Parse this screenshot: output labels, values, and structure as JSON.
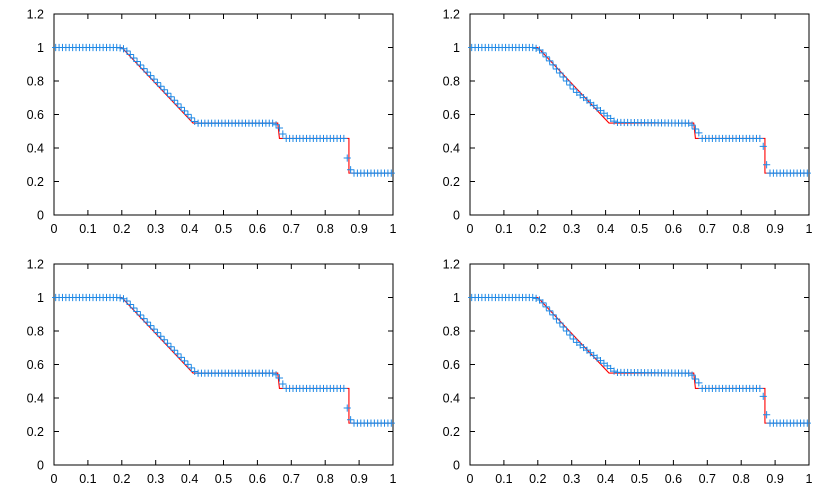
{
  "chart_data": [
    {
      "type": "line",
      "xlim": [
        0,
        1
      ],
      "ylim": [
        0,
        1.2
      ],
      "xticks": [
        0,
        0.1,
        0.2,
        0.3,
        0.4,
        0.5,
        0.6,
        0.7,
        0.8,
        0.9,
        1
      ],
      "xtick_labels": [
        "0",
        "0.1",
        "0.2",
        "0.3",
        "0.4",
        "0.5",
        "0.6",
        "0.7",
        "0.8",
        "0.9",
        "1"
      ],
      "yticks": [
        0,
        0.2,
        0.4,
        0.6,
        0.8,
        1,
        1.2
      ],
      "ytick_labels": [
        "0",
        "0.2",
        "0.4",
        "0.6",
        "0.8",
        "1",
        "1.2"
      ],
      "grid": false,
      "series": [
        {
          "kind": "line",
          "color": "#ff0000",
          "x": [
            0,
            0.2,
            0.41,
            0.66,
            0.665,
            0.87,
            0.87,
            1
          ],
          "y": [
            1,
            1,
            0.549,
            0.549,
            0.457,
            0.457,
            0.25,
            0.25
          ]
        },
        {
          "kind": "markers",
          "marker": "plus",
          "color": "#1e88e5",
          "point_count": 100,
          "x_step": 0.01,
          "profile": {
            "x": [
              0,
              0.19,
              0.21,
              0.42,
              0.65,
              0.67,
              0.68,
              0.86,
              0.865,
              0.875,
              0.88,
              1
            ],
            "y": [
              1,
              1,
              0.99,
              0.548,
              0.548,
              0.51,
              0.457,
              0.457,
              0.34,
              0.27,
              0.25,
              0.25
            ]
          }
        }
      ]
    },
    {
      "type": "line",
      "xlim": [
        0,
        1
      ],
      "ylim": [
        0,
        1.2
      ],
      "xticks": [
        0,
        0.1,
        0.2,
        0.3,
        0.4,
        0.5,
        0.6,
        0.7,
        0.8,
        0.9,
        1
      ],
      "xtick_labels": [
        "0",
        "0.1",
        "0.2",
        "0.3",
        "0.4",
        "0.5",
        "0.6",
        "0.7",
        "0.8",
        "0.9",
        "1"
      ],
      "yticks": [
        0,
        0.2,
        0.4,
        0.6,
        0.8,
        1,
        1.2
      ],
      "ytick_labels": [
        "0",
        "0.2",
        "0.4",
        "0.6",
        "0.8",
        "1",
        "1.2"
      ],
      "grid": false,
      "series": [
        {
          "kind": "line",
          "color": "#ff0000",
          "x": [
            0,
            0.2,
            0.41,
            0.66,
            0.665,
            0.87,
            0.87,
            1
          ],
          "y": [
            1,
            1,
            0.549,
            0.549,
            0.457,
            0.457,
            0.25,
            0.25
          ]
        },
        {
          "kind": "markers",
          "marker": "plus",
          "color": "#1e88e5",
          "point_count": 100,
          "x_step": 0.01,
          "profile": {
            "x": [
              0,
              0.19,
              0.21,
              0.31,
              0.43,
              0.65,
              0.675,
              0.685,
              0.86,
              0.865,
              0.875,
              0.88,
              1
            ],
            "y": [
              1,
              1,
              0.98,
              0.74,
              0.553,
              0.548,
              0.49,
              0.457,
              0.457,
              0.41,
              0.3,
              0.25,
              0.25
            ]
          }
        }
      ]
    },
    {
      "type": "line",
      "xlim": [
        0,
        1
      ],
      "ylim": [
        0,
        1.2
      ],
      "xticks": [
        0,
        0.1,
        0.2,
        0.3,
        0.4,
        0.5,
        0.6,
        0.7,
        0.8,
        0.9,
        1
      ],
      "xtick_labels": [
        "0",
        "0.1",
        "0.2",
        "0.3",
        "0.4",
        "0.5",
        "0.6",
        "0.7",
        "0.8",
        "0.9",
        "1"
      ],
      "yticks": [
        0,
        0.2,
        0.4,
        0.6,
        0.8,
        1,
        1.2
      ],
      "ytick_labels": [
        "0",
        "0.2",
        "0.4",
        "0.6",
        "0.8",
        "1",
        "1.2"
      ],
      "grid": false,
      "series": [
        {
          "kind": "line",
          "color": "#ff0000",
          "x": [
            0,
            0.2,
            0.41,
            0.66,
            0.665,
            0.87,
            0.87,
            1
          ],
          "y": [
            1,
            1,
            0.549,
            0.549,
            0.457,
            0.457,
            0.25,
            0.25
          ]
        },
        {
          "kind": "markers",
          "marker": "plus",
          "color": "#1e88e5",
          "point_count": 100,
          "x_step": 0.01,
          "profile": {
            "x": [
              0,
              0.19,
              0.21,
              0.42,
              0.65,
              0.67,
              0.68,
              0.86,
              0.865,
              0.875,
              0.88,
              1
            ],
            "y": [
              1,
              1,
              0.99,
              0.548,
              0.548,
              0.51,
              0.457,
              0.457,
              0.34,
              0.27,
              0.25,
              0.25
            ]
          }
        }
      ]
    },
    {
      "type": "line",
      "xlim": [
        0,
        1
      ],
      "ylim": [
        0,
        1.2
      ],
      "xticks": [
        0,
        0.1,
        0.2,
        0.3,
        0.4,
        0.5,
        0.6,
        0.7,
        0.8,
        0.9,
        1
      ],
      "xtick_labels": [
        "0",
        "0.1",
        "0.2",
        "0.3",
        "0.4",
        "0.5",
        "0.6",
        "0.7",
        "0.8",
        "0.9",
        "1"
      ],
      "yticks": [
        0,
        0.2,
        0.4,
        0.6,
        0.8,
        1,
        1.2
      ],
      "ytick_labels": [
        "0",
        "0.2",
        "0.4",
        "0.6",
        "0.8",
        "1",
        "1.2"
      ],
      "grid": false,
      "series": [
        {
          "kind": "line",
          "color": "#ff0000",
          "x": [
            0,
            0.2,
            0.41,
            0.66,
            0.665,
            0.87,
            0.87,
            1
          ],
          "y": [
            1,
            1,
            0.549,
            0.549,
            0.457,
            0.457,
            0.25,
            0.25
          ]
        },
        {
          "kind": "markers",
          "marker": "plus",
          "color": "#1e88e5",
          "point_count": 100,
          "x_step": 0.01,
          "profile": {
            "x": [
              0,
              0.19,
              0.21,
              0.31,
              0.43,
              0.65,
              0.675,
              0.685,
              0.86,
              0.865,
              0.875,
              0.88,
              1
            ],
            "y": [
              1,
              1,
              0.98,
              0.74,
              0.553,
              0.548,
              0.49,
              0.457,
              0.457,
              0.41,
              0.3,
              0.25,
              0.25
            ]
          }
        }
      ]
    }
  ]
}
